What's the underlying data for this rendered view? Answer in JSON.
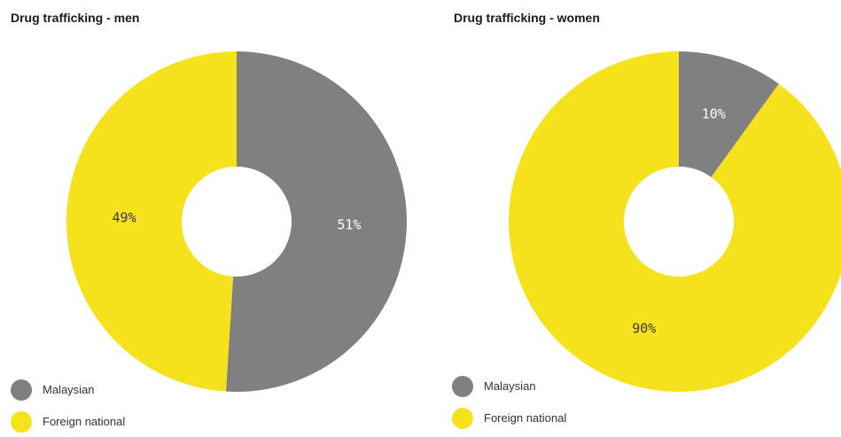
{
  "chart_data": [
    {
      "type": "pie",
      "donut": true,
      "title": "Drug trafficking - men",
      "slices": [
        {
          "label": "Malaysian",
          "value": 51,
          "display": "51%",
          "color": "#808080",
          "label_color": "#ffffff"
        },
        {
          "label": "Foreign national",
          "value": 49,
          "display": "49%",
          "color": "#f5e21c",
          "label_color": "#3a3a3a"
        }
      ],
      "legend": [
        {
          "label": "Malaysian",
          "color": "#808080"
        },
        {
          "label": "Foreign national",
          "color": "#f5e21c"
        }
      ],
      "legend_position": "bottom-left"
    },
    {
      "type": "pie",
      "donut": true,
      "title": "Drug trafficking - women",
      "slices": [
        {
          "label": "Malaysian",
          "value": 10,
          "display": "10%",
          "color": "#808080",
          "label_color": "#ffffff"
        },
        {
          "label": "Foreign national",
          "value": 90,
          "display": "90%",
          "color": "#f5e21c",
          "label_color": "#3a3a3a"
        }
      ],
      "legend": [
        {
          "label": "Malaysian",
          "color": "#808080"
        },
        {
          "label": "Foreign national",
          "color": "#f5e21c"
        }
      ],
      "legend_position": "bottom-left"
    }
  ]
}
